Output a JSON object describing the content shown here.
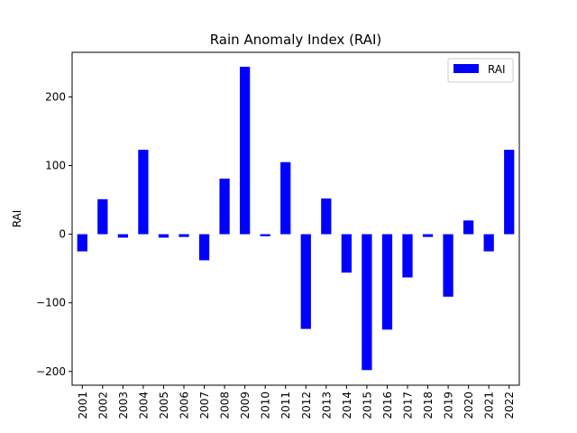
{
  "chart_data": {
    "type": "bar",
    "title": "Rain Anomaly Index (RAI)",
    "xlabel": "",
    "ylabel": "RAI",
    "categories": [
      "2001",
      "2002",
      "2003",
      "2004",
      "2005",
      "2006",
      "2007",
      "2008",
      "2009",
      "2010",
      "2011",
      "2012",
      "2013",
      "2014",
      "2015",
      "2016",
      "2017",
      "2018",
      "2019",
      "2020",
      "2021",
      "2022"
    ],
    "series": [
      {
        "name": "RAI",
        "color": "#0000ff",
        "values": [
          -25,
          51,
          -5,
          123,
          -5,
          -4,
          -38,
          81,
          244,
          -3,
          105,
          -138,
          52,
          -56,
          -198,
          -139,
          -63,
          -4,
          -91,
          20,
          -25,
          123
        ]
      }
    ],
    "ylim": [
      -220,
      265
    ],
    "yticks": [
      -200,
      -100,
      0,
      100,
      200
    ],
    "yticklabels": [
      "−200",
      "−100",
      "0",
      "100",
      "200"
    ],
    "legend": {
      "position": "top-right",
      "entries": [
        "RAI"
      ]
    },
    "grid": false
  }
}
